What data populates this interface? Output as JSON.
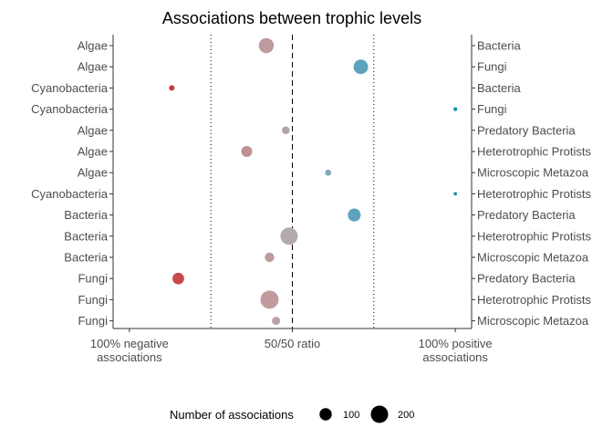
{
  "chart_data": {
    "type": "scatter",
    "title": "Associations between trophic levels",
    "x_axis": {
      "range": [
        -5,
        105
      ],
      "ticks": [
        {
          "value": 0,
          "label": [
            "100% negative",
            "associations"
          ]
        },
        {
          "value": 50,
          "label": [
            "50/50 ratio"
          ]
        },
        {
          "value": 100,
          "label": [
            "100% positive",
            "associations"
          ]
        }
      ],
      "reference_lines": [
        {
          "value": 25,
          "style": "dotted"
        },
        {
          "value": 50,
          "style": "dashed"
        },
        {
          "value": 75,
          "style": "dotted"
        }
      ]
    },
    "rows": [
      {
        "left": "Algae",
        "right": "Bacteria",
        "x": 42,
        "n": 150,
        "color": "#bd9a9d"
      },
      {
        "left": "Algae",
        "right": "Fungi",
        "x": 71,
        "n": 140,
        "color": "#5da3bd"
      },
      {
        "left": "Cyanobacteria",
        "right": "Bacteria",
        "x": 13,
        "n": 20,
        "color": "#c23b3b"
      },
      {
        "left": "Cyanobacteria",
        "right": "Fungi",
        "x": 100,
        "n": 10,
        "color": "#1493ad"
      },
      {
        "left": "Algae",
        "right": "Predatory Bacteria",
        "x": 48,
        "n": 40,
        "color": "#b3a4a6"
      },
      {
        "left": "Algae",
        "right": "Heterotrophic Protists",
        "x": 36,
        "n": 80,
        "color": "#bf8f93"
      },
      {
        "left": "Algae",
        "right": "Microscopic Metazoa",
        "x": 61,
        "n": 25,
        "color": "#7eaabb"
      },
      {
        "left": "Cyanobacteria",
        "right": "Heterotrophic Protists",
        "x": 100,
        "n": 8,
        "color": "#1493ad"
      },
      {
        "left": "Bacteria",
        "right": "Predatory Bacteria",
        "x": 69,
        "n": 110,
        "color": "#5da3bd"
      },
      {
        "left": "Bacteria",
        "right": "Heterotrophic Protists",
        "x": 49,
        "n": 200,
        "color": "#b4aaab"
      },
      {
        "left": "Bacteria",
        "right": "Microscopic Metazoa",
        "x": 43,
        "n": 60,
        "color": "#bf9a9c"
      },
      {
        "left": "Fungi",
        "right": "Predatory Bacteria",
        "x": 15,
        "n": 90,
        "color": "#c64848"
      },
      {
        "left": "Fungi",
        "right": "Heterotrophic Protists",
        "x": 43,
        "n": 220,
        "color": "#c29b9e"
      },
      {
        "left": "Fungi",
        "right": "Microscopic Metazoa",
        "x": 45,
        "n": 45,
        "color": "#b9a3a5"
      }
    ],
    "legend": {
      "title": "Number of associations",
      "position": "bottom",
      "items": [
        {
          "label": "100",
          "n": 100
        },
        {
          "label": "200",
          "n": 200
        }
      ]
    }
  }
}
